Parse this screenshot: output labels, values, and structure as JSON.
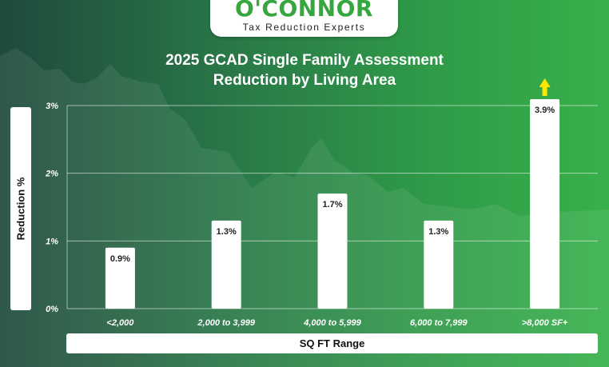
{
  "brand": {
    "name": "O'CONNOR",
    "tagline": "Tax Reduction Experts"
  },
  "chart_data": {
    "type": "bar",
    "title": "2025 GCAD Single Family Assessment Reduction by Living Area",
    "title_lines": [
      "2025 GCAD Single Family Assessment",
      "Reduction by Living Area"
    ],
    "xlabel": "SQ FT Range",
    "ylabel": "Reduction %",
    "categories": [
      "<2,000",
      "2,000 to 3,999",
      "4,000 to 5,999",
      "6,000 to 7,999",
      ">8,000 SF+"
    ],
    "values": [
      0.9,
      1.3,
      1.7,
      1.3,
      3.9
    ],
    "data_labels": [
      "0.9%",
      "1.3%",
      "1.7%",
      "1.3%",
      "3.9%"
    ],
    "yticks": [
      0,
      1,
      2,
      3
    ],
    "ytick_labels": [
      "0%",
      "1%",
      "2%",
      "3%"
    ],
    "ylim": [
      0,
      3
    ],
    "grid": true,
    "highlight_arrow_on": ">8,000 SF+"
  },
  "colors": {
    "bar": "#ffffff",
    "arrow": "#ffe600",
    "brand_green": "#36a63f"
  }
}
